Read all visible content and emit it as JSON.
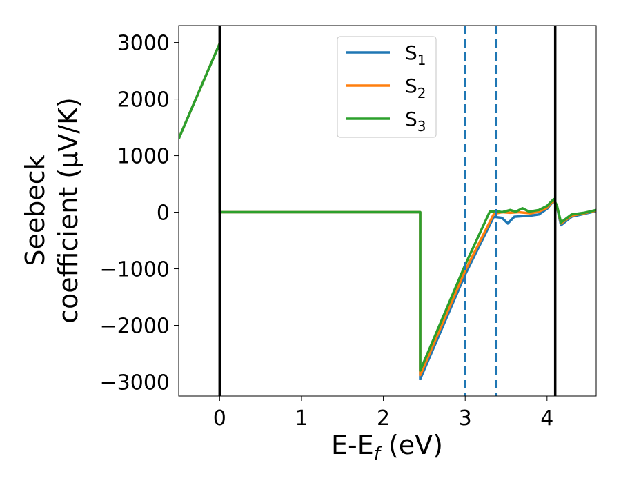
{
  "chart_data": {
    "type": "line",
    "xlabel": {
      "main": "E-E",
      "sub": "f",
      "unit": " (eV)"
    },
    "ylabel": {
      "line1": "Seebeck",
      "line2": "coefficient  (μV/K)"
    },
    "xlim": [
      -0.5,
      4.6
    ],
    "ylim": [
      -3250,
      3300
    ],
    "xticks": [
      0,
      1,
      2,
      3,
      4
    ],
    "xtick_labels": [
      "0",
      "1",
      "2",
      "3",
      "4"
    ],
    "yticks": [
      3000,
      2000,
      1000,
      0,
      -1000,
      -2000,
      -3000
    ],
    "ytick_labels": [
      "3000",
      "2000",
      "1000",
      "0",
      "−1000",
      "−2000",
      "−3000"
    ],
    "grid": false,
    "legend_position": "top-center",
    "vlines": [
      {
        "x": 0.0,
        "style": "solid",
        "color": "#000000"
      },
      {
        "x": 4.1,
        "style": "solid",
        "color": "#000000"
      },
      {
        "x": 3.0,
        "style": "dashed",
        "color": "#1f77b4"
      },
      {
        "x": 3.38,
        "style": "dashed",
        "color": "#1f77b4"
      }
    ],
    "series": [
      {
        "name": "S",
        "sub": "1",
        "color": "#1f77b4",
        "points": [
          [
            -0.5,
            1300
          ],
          [
            0.0,
            2980
          ],
          [
            0.0,
            0
          ],
          [
            2.45,
            0
          ],
          [
            2.45,
            -2950
          ],
          [
            3.0,
            -1100
          ],
          [
            3.35,
            -80
          ],
          [
            3.45,
            -100
          ],
          [
            3.52,
            -200
          ],
          [
            3.6,
            -80
          ],
          [
            3.8,
            -60
          ],
          [
            3.9,
            -40
          ],
          [
            4.0,
            60
          ],
          [
            4.08,
            200
          ],
          [
            4.12,
            100
          ],
          [
            4.17,
            -230
          ],
          [
            4.3,
            -80
          ],
          [
            4.45,
            -30
          ],
          [
            4.6,
            20
          ]
        ]
      },
      {
        "name": "S",
        "sub": "2",
        "color": "#ff7f0e",
        "points": [
          [
            -0.5,
            1300
          ],
          [
            0.0,
            2980
          ],
          [
            0.0,
            0
          ],
          [
            2.45,
            0
          ],
          [
            2.45,
            -2880
          ],
          [
            3.0,
            -1030
          ],
          [
            3.35,
            -30
          ],
          [
            3.45,
            0
          ],
          [
            3.55,
            -10
          ],
          [
            3.65,
            0
          ],
          [
            3.8,
            -20
          ],
          [
            3.9,
            10
          ],
          [
            4.0,
            80
          ],
          [
            4.08,
            210
          ],
          [
            4.12,
            110
          ],
          [
            4.17,
            -200
          ],
          [
            4.3,
            -60
          ],
          [
            4.45,
            -20
          ],
          [
            4.6,
            30
          ]
        ]
      },
      {
        "name": "S",
        "sub": "3",
        "color": "#2ca02c",
        "points": [
          [
            -0.5,
            1300
          ],
          [
            0.0,
            2980
          ],
          [
            0.0,
            0
          ],
          [
            2.45,
            0
          ],
          [
            2.45,
            -2800
          ],
          [
            3.0,
            -930
          ],
          [
            3.3,
            10
          ],
          [
            3.38,
            20
          ],
          [
            3.45,
            0
          ],
          [
            3.55,
            40
          ],
          [
            3.62,
            10
          ],
          [
            3.7,
            70
          ],
          [
            3.78,
            10
          ],
          [
            3.9,
            40
          ],
          [
            4.0,
            110
          ],
          [
            4.08,
            230
          ],
          [
            4.12,
            120
          ],
          [
            4.17,
            -180
          ],
          [
            4.3,
            -40
          ],
          [
            4.45,
            -10
          ],
          [
            4.6,
            40
          ]
        ]
      }
    ]
  }
}
